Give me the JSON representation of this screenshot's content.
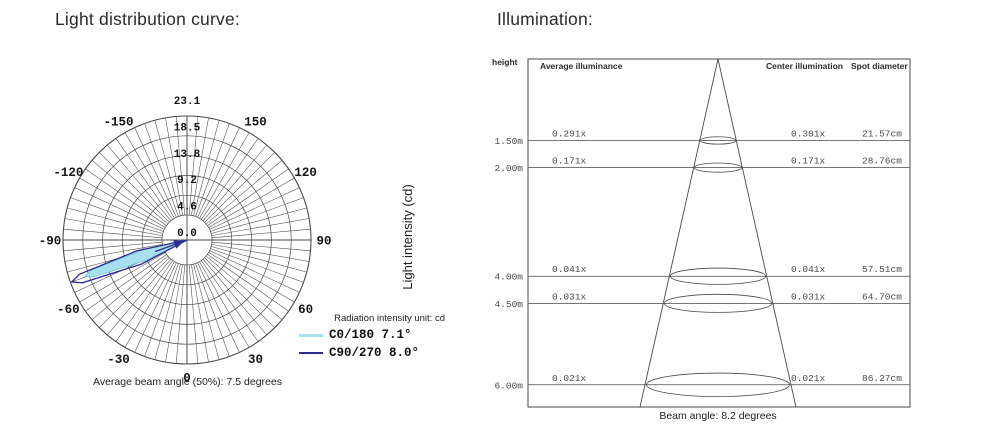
{
  "page": {
    "background": "#ffffff"
  },
  "left_panel": {
    "title": "Light distribution curve:",
    "ylabel": "Light intensity (cd)",
    "caption": "Average beam angle (50%): 7.5 degrees",
    "legend": {
      "unit_label": "Radiation intensity unit: cd",
      "items": [
        {
          "label": "C0/180 7.1°",
          "color": "#a9e0ef"
        },
        {
          "label": "C90/270 8.0°",
          "color": "#2d2d91"
        }
      ]
    }
  },
  "right_panel": {
    "title": "Illumination:",
    "caption": "Beam angle: 8.2 degrees",
    "headers": {
      "height": "height",
      "avg": "Average illuminance",
      "center": "Center illumination",
      "spot": "Spot diameter"
    }
  },
  "chart_data": [
    {
      "type": "line",
      "subtype": "polar-photometric",
      "title": "Light distribution curve",
      "radial_axis": {
        "label": "Light intensity (cd)",
        "unit": "cd",
        "ticks": [
          0.0,
          4.6,
          9.2,
          13.8,
          18.5,
          23.1
        ]
      },
      "angle_ticks": [
        0,
        30,
        60,
        90,
        120,
        150,
        -150,
        -120,
        -90,
        -60,
        -30
      ],
      "grid": {
        "spoke_step_deg": 5,
        "rings": 6
      },
      "series": [
        {
          "name": "C0/180",
          "beam_angle_deg": 7.1,
          "peak_direction_deg": -70.5,
          "peak_intensity_cd": 19.5,
          "color": "#a9e0ef"
        },
        {
          "name": "C90/270",
          "beam_angle_deg": 8.0,
          "peak_direction_deg": -70.0,
          "peak_intensity_cd": 22.8,
          "color": "#2d2d91"
        }
      ],
      "annotation": "Average beam angle (50%): 7.5 degrees"
    },
    {
      "type": "table",
      "subtype": "illumination-cone",
      "title": "Illumination",
      "columns": [
        "height",
        "Average illuminance",
        "Center illumination",
        "Spot diameter"
      ],
      "rows": [
        {
          "height": "1.50m",
          "height_m": 1.5,
          "avg": "0.291x",
          "center": "0.301x",
          "spot": "21.57cm",
          "spot_cm": 21.57
        },
        {
          "height": "2.00m",
          "height_m": 2.0,
          "avg": "0.171x",
          "center": "0.171x",
          "spot": "28.76cm",
          "spot_cm": 28.76
        },
        {
          "height": "4.00m",
          "height_m": 4.0,
          "avg": "0.041x",
          "center": "0.041x",
          "spot": "57.51cm",
          "spot_cm": 57.51
        },
        {
          "height": "4.50m",
          "height_m": 4.5,
          "avg": "0.031x",
          "center": "0.031x",
          "spot": "64.70cm",
          "spot_cm": 64.7
        },
        {
          "height": "6.00m",
          "height_m": 6.0,
          "avg": "0.021x",
          "center": "0.021x",
          "spot": "86.27cm",
          "spot_cm": 86.27
        }
      ],
      "beam_angle_deg": 8.2,
      "beam_angle_label": "Beam angle: 8.2 degrees"
    }
  ]
}
